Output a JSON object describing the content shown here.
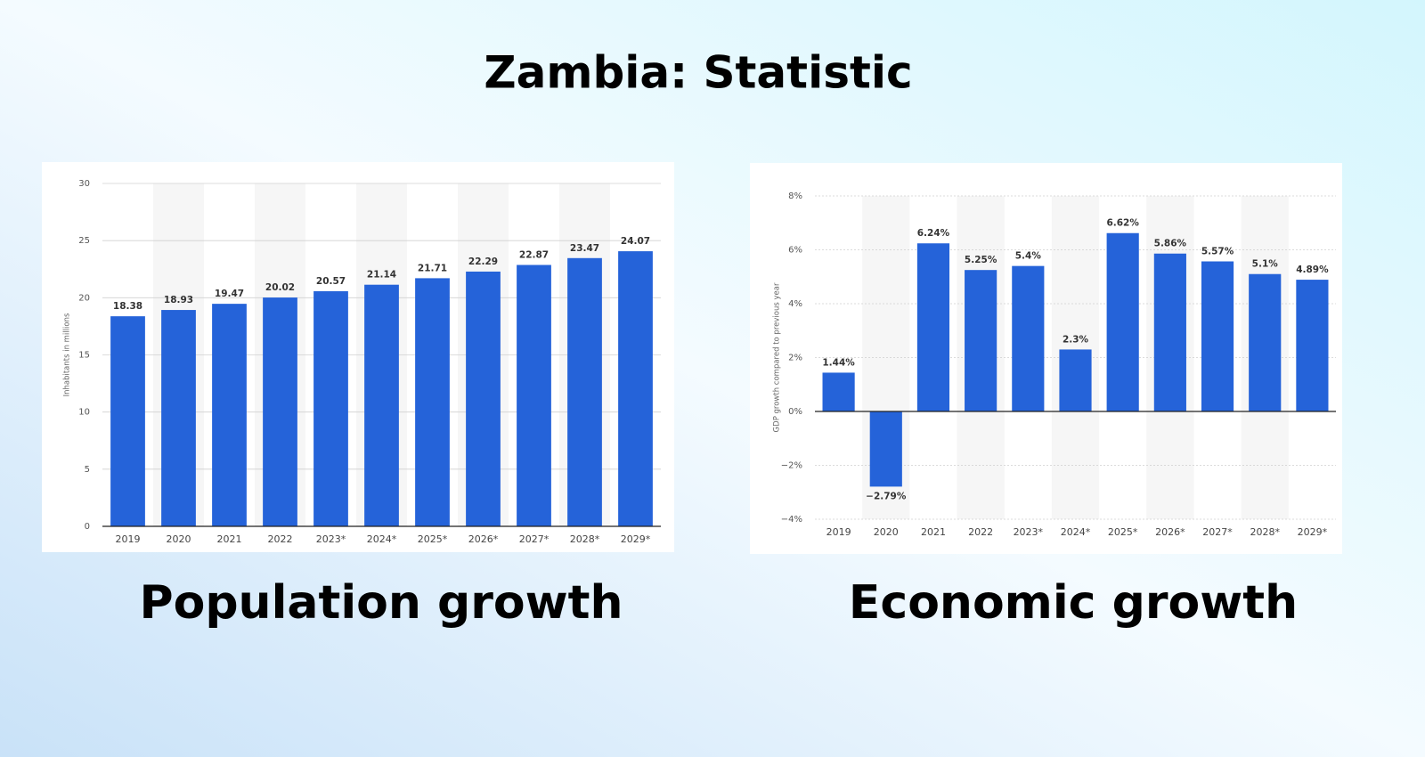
{
  "title": "Zambia: Statistic",
  "chart_data": [
    {
      "type": "bar",
      "caption": "Population growth",
      "ylabel": "Inhabitants in millions",
      "categories": [
        "2019",
        "2020",
        "2021",
        "2022",
        "2023*",
        "2024*",
        "2025*",
        "2026*",
        "2027*",
        "2028*",
        "2029*"
      ],
      "values": [
        18.38,
        18.93,
        19.47,
        20.02,
        20.57,
        21.14,
        21.71,
        22.29,
        22.87,
        23.47,
        24.07
      ],
      "color": "#2563d9",
      "ylim": [
        0,
        30
      ],
      "yticks": [
        0,
        5,
        10,
        15,
        20,
        25,
        30
      ],
      "grid": true
    },
    {
      "type": "bar",
      "caption": "Economic growth",
      "ylabel": "GDP growth compared to previous year",
      "categories": [
        "2019",
        "2020",
        "2021",
        "2022",
        "2023*",
        "2024*",
        "2025*",
        "2026*",
        "2027*",
        "2028*",
        "2029*"
      ],
      "values": [
        1.44,
        -2.79,
        6.24,
        5.25,
        5.4,
        2.3,
        6.62,
        5.86,
        5.57,
        5.1,
        4.89
      ],
      "value_labels": [
        "1.44%",
        "−2.79%",
        "6.24%",
        "5.25%",
        "5.4%",
        "2.3%",
        "6.62%",
        "5.86%",
        "5.57%",
        "5.1%",
        "4.89%"
      ],
      "color": "#2563d9",
      "ylim": [
        -4,
        8
      ],
      "yticks": [
        {
          "value": -4,
          "label": "−4%"
        },
        {
          "value": -2,
          "label": "−2%"
        },
        {
          "value": 0,
          "label": "0%"
        },
        {
          "value": 2,
          "label": "2%"
        },
        {
          "value": 4,
          "label": "4%"
        },
        {
          "value": 6,
          "label": "6%"
        },
        {
          "value": 8,
          "label": "8%"
        }
      ],
      "grid": true
    }
  ]
}
